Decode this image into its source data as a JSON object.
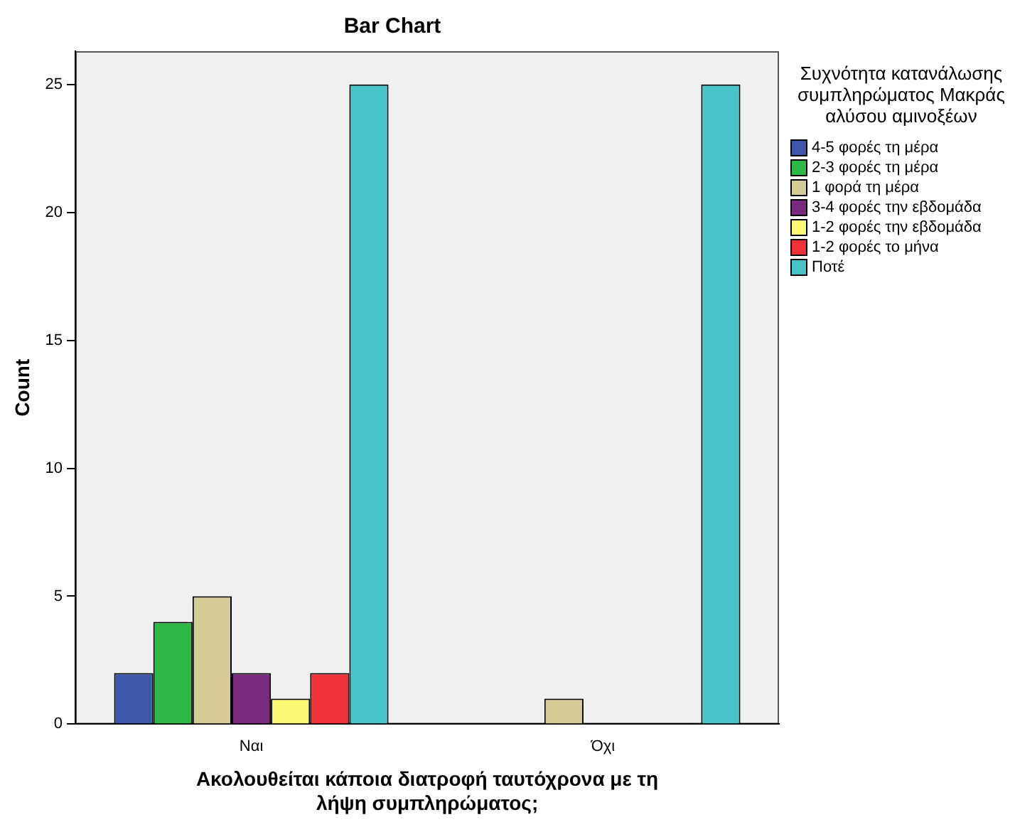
{
  "chart_data": {
    "type": "bar",
    "title": "Bar Chart",
    "xlabel": "Ακολουθείται κάποια διατροφή ταυτόχρονα με τη λήψη συμπληρώματος;",
    "ylabel": "Count",
    "legend_title": "Συχνότητα κατανάλωσης συμπληρώματος Μακράς αλύσου αμινοξέων",
    "categories": [
      "Ναι",
      "Όχι"
    ],
    "series": [
      {
        "name": "4-5 φορές τη μέρα",
        "color": "#3e58ac",
        "values": [
          2,
          null
        ]
      },
      {
        "name": "2-3 φορές τη μέρα",
        "color": "#2eb847",
        "values": [
          4,
          null
        ]
      },
      {
        "name": "1 φορά τη μέρα",
        "color": "#d4cc94",
        "values": [
          5,
          1
        ]
      },
      {
        "name": "3-4 φορές την εβδομάδα",
        "color": "#782b7f",
        "values": [
          2,
          null
        ]
      },
      {
        "name": "1-2 φορές την εβδομάδα",
        "color": "#fbf873",
        "values": [
          1,
          null
        ]
      },
      {
        "name": "1-2 φορές το μήνα",
        "color": "#ee3237",
        "values": [
          2,
          null
        ]
      },
      {
        "name": "Ποτέ",
        "color": "#48c4c8",
        "values": [
          25,
          25
        ]
      }
    ],
    "ylim": [
      0,
      26.3
    ],
    "yticks": [
      0,
      5,
      10,
      15,
      20,
      25
    ],
    "grid": false,
    "legend": "right"
  }
}
